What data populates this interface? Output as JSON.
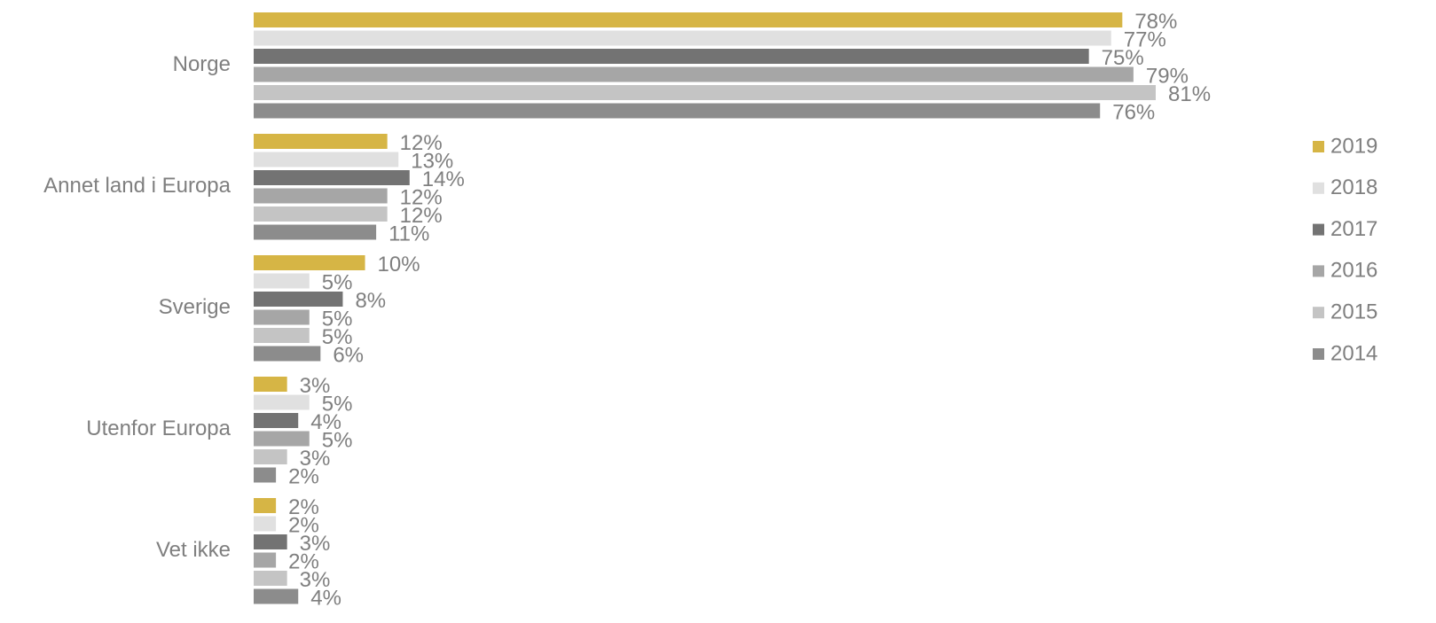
{
  "chart_data": {
    "type": "bar",
    "orientation": "horizontal",
    "legend": "right",
    "categories": [
      "Norge",
      "Annet land i Europa",
      "Sverige",
      "Utenfor Europa",
      "Vet ikke"
    ],
    "series": [
      {
        "name": "2019",
        "color": "#d6b545",
        "values": [
          78,
          12,
          10,
          3,
          2
        ],
        "value_labels": [
          "78%",
          "12%",
          "10%",
          "3%",
          "2%"
        ]
      },
      {
        "name": "2018",
        "color": "#e0e0e0",
        "values": [
          77,
          13,
          5,
          5,
          2
        ],
        "value_labels": [
          "77%",
          "13%",
          "5%",
          "5%",
          "2%"
        ]
      },
      {
        "name": "2017",
        "color": "#737373",
        "values": [
          75,
          14,
          8,
          4,
          3
        ],
        "value_labels": [
          "75%",
          "14%",
          "8%",
          "4%",
          "3%"
        ]
      },
      {
        "name": "2016",
        "color": "#a6a6a6",
        "values": [
          79,
          12,
          5,
          5,
          2
        ],
        "value_labels": [
          "79%",
          "12%",
          "5%",
          "5%",
          "2%"
        ]
      },
      {
        "name": "2015",
        "color": "#c4c4c4",
        "values": [
          81,
          12,
          5,
          3,
          3
        ],
        "value_labels": [
          "81%",
          "12%",
          "5%",
          "3%",
          "3%"
        ]
      },
      {
        "name": "2014",
        "color": "#8c8c8c",
        "values": [
          76,
          11,
          6,
          2,
          4
        ],
        "value_labels": [
          "76%",
          "11%",
          "6%",
          "2%",
          "4%"
        ]
      }
    ]
  }
}
